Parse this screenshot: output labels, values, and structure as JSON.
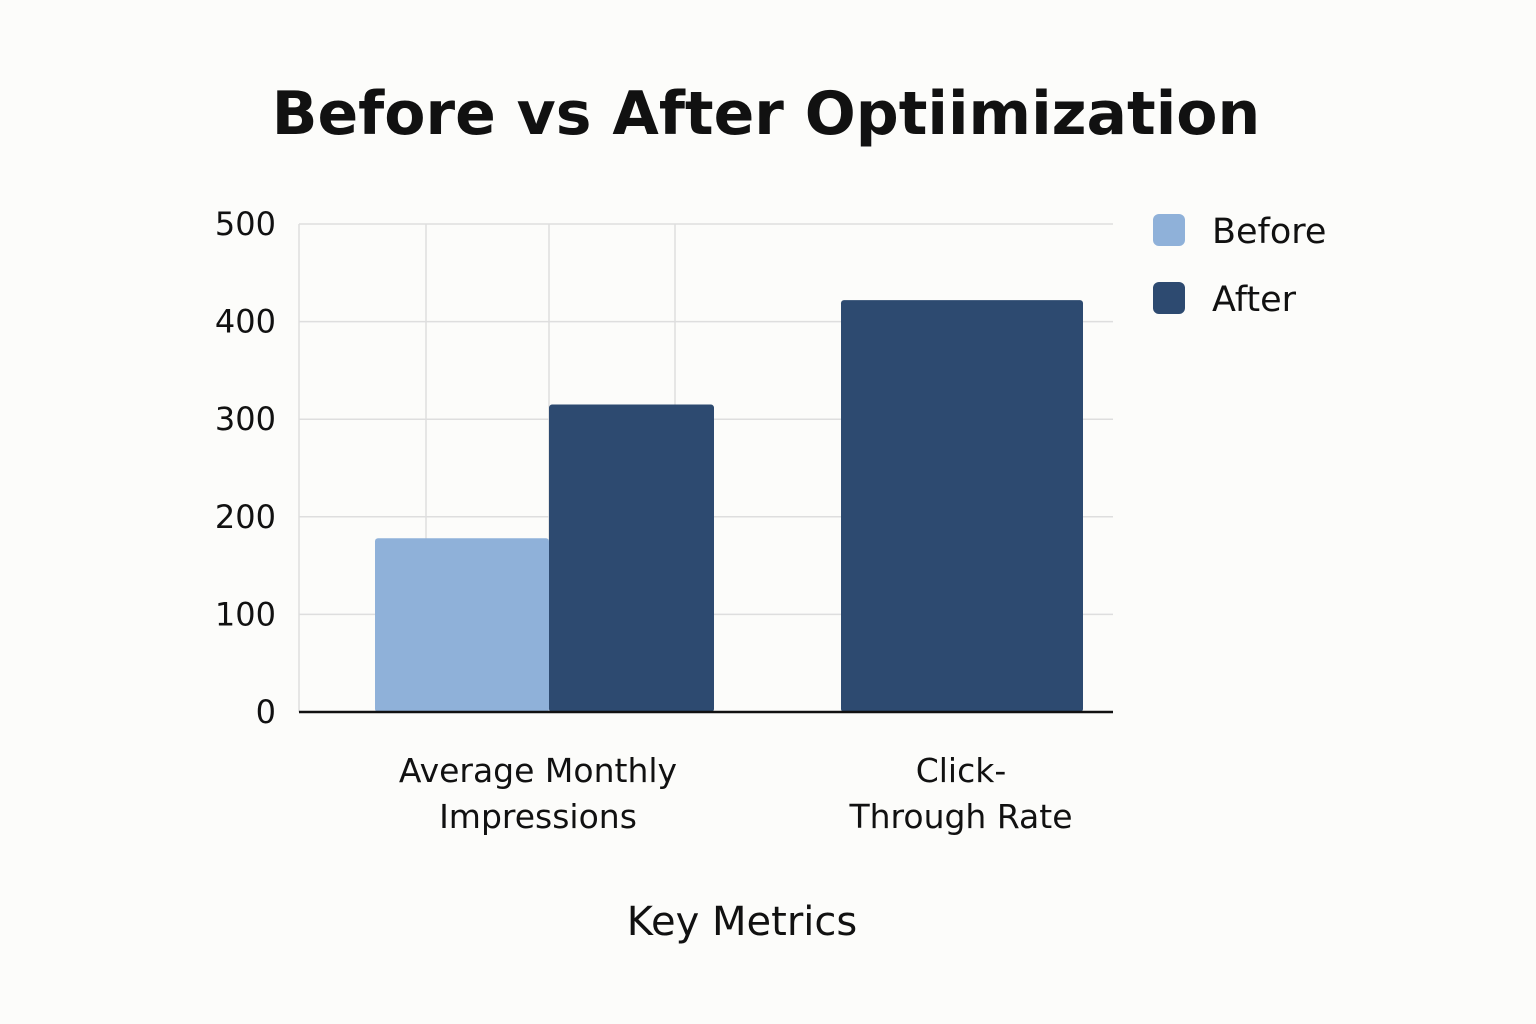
{
  "chart_data": {
    "type": "bar",
    "title": "Before vs After Optiimization",
    "xlabel": "Key Metrics",
    "ylabel": "",
    "ylim": [
      0,
      500
    ],
    "yticks": [
      0,
      100,
      200,
      300,
      400,
      500
    ],
    "grid": true,
    "legend_position": "top-right",
    "categories": [
      [
        "Average Monthly",
        "Impressions"
      ],
      [
        "Click-",
        "Through Rate"
      ]
    ],
    "series": [
      {
        "name": "Before",
        "color": "#8fb1d9",
        "values": [
          178,
          null
        ]
      },
      {
        "name": "After",
        "color": "#2d4a70",
        "values": [
          315,
          422
        ]
      }
    ]
  }
}
